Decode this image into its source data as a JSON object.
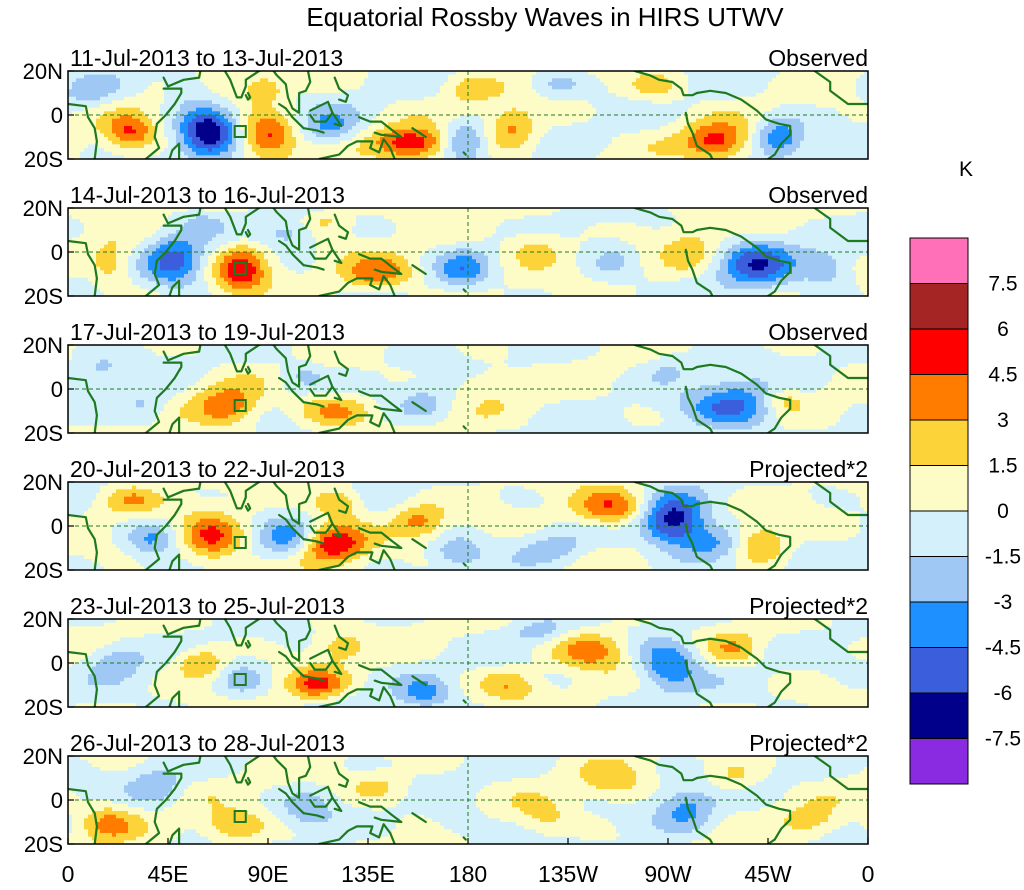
{
  "chart_data": {
    "type": "heatmap",
    "title": "Equatorial Rossby Waves in HIRS UTWV",
    "x_tick_labels": [
      "0",
      "45E",
      "90E",
      "135E",
      "180",
      "135W",
      "90W",
      "45W",
      "0"
    ],
    "x_ticks_deg": [
      0,
      45,
      90,
      135,
      180,
      225,
      270,
      315,
      360
    ],
    "xlim_deg": [
      0,
      360
    ],
    "y_tick_labels": [
      "20N",
      "0",
      "20S"
    ],
    "y_ticks_deg": [
      20,
      0,
      -20
    ],
    "ylim_deg": [
      -20,
      20
    ],
    "colorbar": {
      "unit": "K",
      "levels": [
        -7.5,
        -6,
        -4.5,
        -3,
        -1.5,
        0,
        1.5,
        3,
        4.5,
        6,
        7.5
      ],
      "level_labels": [
        "-7.5",
        "-6",
        "-4.5",
        "-3",
        "-1.5",
        "0",
        "1.5",
        "3",
        "4.5",
        "6",
        "7.5"
      ],
      "colors": [
        "#8a2be2",
        "#00008b",
        "#3b5fdc",
        "#1e90ff",
        "#9fc8f5",
        "#d4f0fb",
        "#fdfbc6",
        "#fcd43a",
        "#ff7c00",
        "#ff0000",
        "#a52525",
        "#ff70b8"
      ]
    },
    "reference_box": {
      "lon": [
        75,
        80
      ],
      "lat": [
        -10,
        -5
      ]
    },
    "panels": [
      {
        "date_range": "11-Jul-2013 to 13-Jul-2013",
        "label": "Observed",
        "blobs": [
          {
            "lon": 28,
            "lat": -8,
            "v": 4.2,
            "rl": 8,
            "rt": 6
          },
          {
            "lon": 63,
            "lat": -8,
            "v": -7.2,
            "rl": 9,
            "rt": 8
          },
          {
            "lon": 53,
            "lat": 12,
            "v": -2.0,
            "rl": 7,
            "rt": 5
          },
          {
            "lon": 90,
            "lat": -10,
            "v": 5.5,
            "rl": 9,
            "rt": 7
          },
          {
            "lon": 88,
            "lat": 12,
            "v": 2.5,
            "rl": 8,
            "rt": 5
          },
          {
            "lon": 118,
            "lat": -6,
            "v": -3.0,
            "rl": 9,
            "rt": 6
          },
          {
            "lon": 155,
            "lat": -13,
            "v": 5.8,
            "rl": 12,
            "rt": 5
          },
          {
            "lon": 178,
            "lat": -12,
            "v": -4.0,
            "rl": 7,
            "rt": 6
          },
          {
            "lon": 200,
            "lat": -6,
            "v": 3.5,
            "rl": 8,
            "rt": 7
          },
          {
            "lon": 180,
            "lat": 12,
            "v": 2.0,
            "rl": 8,
            "rt": 5
          },
          {
            "lon": 220,
            "lat": 14,
            "v": -1.8,
            "rl": 8,
            "rt": 4
          },
          {
            "lon": 292,
            "lat": -12,
            "v": 5.0,
            "rl": 11,
            "rt": 6
          },
          {
            "lon": 320,
            "lat": -10,
            "v": -4.5,
            "rl": 8,
            "rt": 6
          },
          {
            "lon": 265,
            "lat": 12,
            "v": 2.0,
            "rl": 9,
            "rt": 5
          },
          {
            "lon": 10,
            "lat": 10,
            "v": -1.8,
            "rl": 8,
            "rt": 5
          }
        ]
      },
      {
        "date_range": "14-Jul-2013 to 16-Jul-2013",
        "label": "Observed",
        "blobs": [
          {
            "lon": 20,
            "lat": -6,
            "v": 2.5,
            "rl": 7,
            "rt": 8
          },
          {
            "lon": 48,
            "lat": -4,
            "v": -4.5,
            "rl": 9,
            "rt": 9
          },
          {
            "lon": 78,
            "lat": -8,
            "v": 5.2,
            "rl": 8,
            "rt": 8
          },
          {
            "lon": 100,
            "lat": 8,
            "v": -2.2,
            "rl": 9,
            "rt": 5
          },
          {
            "lon": 140,
            "lat": -10,
            "v": 4.0,
            "rl": 12,
            "rt": 6
          },
          {
            "lon": 178,
            "lat": -8,
            "v": -3.2,
            "rl": 8,
            "rt": 6
          },
          {
            "lon": 210,
            "lat": 2,
            "v": 2.6,
            "rl": 10,
            "rt": 6
          },
          {
            "lon": 245,
            "lat": -4,
            "v": -1.8,
            "rl": 8,
            "rt": 7
          },
          {
            "lon": 280,
            "lat": 2,
            "v": 2.2,
            "rl": 9,
            "rt": 7
          },
          {
            "lon": 310,
            "lat": -5,
            "v": -5.0,
            "rl": 12,
            "rt": 8
          },
          {
            "lon": 342,
            "lat": -8,
            "v": -2.5,
            "rl": 8,
            "rt": 6
          },
          {
            "lon": 115,
            "lat": 14,
            "v": 2.0,
            "rl": 8,
            "rt": 4
          },
          {
            "lon": 60,
            "lat": 14,
            "v": -1.6,
            "rl": 7,
            "rt": 4
          }
        ]
      },
      {
        "date_range": "17-Jul-2013 to 19-Jul-2013",
        "label": "Observed",
        "blobs": [
          {
            "lon": 35,
            "lat": -8,
            "v": -2.0,
            "rl": 8,
            "rt": 6
          },
          {
            "lon": 72,
            "lat": -8,
            "v": 4.0,
            "rl": 10,
            "rt": 7
          },
          {
            "lon": 120,
            "lat": -10,
            "v": 3.5,
            "rl": 12,
            "rt": 5
          },
          {
            "lon": 105,
            "lat": 6,
            "v": -2.0,
            "rl": 8,
            "rt": 5
          },
          {
            "lon": 160,
            "lat": -6,
            "v": -1.8,
            "rl": 8,
            "rt": 6
          },
          {
            "lon": 190,
            "lat": 2,
            "v": 1.6,
            "rl": 10,
            "rt": 6
          },
          {
            "lon": 300,
            "lat": -8,
            "v": -4.6,
            "rl": 14,
            "rt": 8
          },
          {
            "lon": 270,
            "lat": 10,
            "v": -1.6,
            "rl": 9,
            "rt": 5
          },
          {
            "lon": 322,
            "lat": -5,
            "v": 2.2,
            "rl": 6,
            "rt": 4
          },
          {
            "lon": 15,
            "lat": 8,
            "v": -1.6,
            "rl": 7,
            "rt": 5
          }
        ]
      },
      {
        "date_range": "20-Jul-2013 to 22-Jul-2013",
        "label": "Projected*2",
        "blobs": [
          {
            "lon": 38,
            "lat": -6,
            "v": -3.0,
            "rl": 8,
            "rt": 6
          },
          {
            "lon": 65,
            "lat": -6,
            "v": 4.8,
            "rl": 10,
            "rt": 8
          },
          {
            "lon": 98,
            "lat": -6,
            "v": -3.2,
            "rl": 8,
            "rt": 6
          },
          {
            "lon": 120,
            "lat": -8,
            "v": 5.6,
            "rl": 10,
            "rt": 6
          },
          {
            "lon": 122,
            "lat": 10,
            "v": 3.5,
            "rl": 8,
            "rt": 5
          },
          {
            "lon": 158,
            "lat": 2,
            "v": 3.2,
            "rl": 8,
            "rt": 5
          },
          {
            "lon": 175,
            "lat": -12,
            "v": -2.8,
            "rl": 8,
            "rt": 5
          },
          {
            "lon": 245,
            "lat": 8,
            "v": 4.6,
            "rl": 12,
            "rt": 6
          },
          {
            "lon": 272,
            "lat": 2,
            "v": -7.0,
            "rl": 10,
            "rt": 8
          },
          {
            "lon": 290,
            "lat": -8,
            "v": -3.5,
            "rl": 10,
            "rt": 6
          },
          {
            "lon": 312,
            "lat": -8,
            "v": 3.3,
            "rl": 8,
            "rt": 6
          },
          {
            "lon": 218,
            "lat": -10,
            "v": -1.8,
            "rl": 10,
            "rt": 5
          },
          {
            "lon": 28,
            "lat": 12,
            "v": 2.5,
            "rl": 9,
            "rt": 5
          }
        ]
      },
      {
        "date_range": "23-Jul-2013 to 25-Jul-2013",
        "label": "Projected*2",
        "blobs": [
          {
            "lon": 22,
            "lat": 2,
            "v": -2.4,
            "rl": 9,
            "rt": 6
          },
          {
            "lon": 60,
            "lat": 0,
            "v": 3.5,
            "rl": 8,
            "rt": 5
          },
          {
            "lon": 78,
            "lat": -8,
            "v": -2.2,
            "rl": 8,
            "rt": 6
          },
          {
            "lon": 112,
            "lat": -10,
            "v": 4.2,
            "rl": 9,
            "rt": 5
          },
          {
            "lon": 122,
            "lat": 8,
            "v": 2.4,
            "rl": 8,
            "rt": 5
          },
          {
            "lon": 160,
            "lat": -14,
            "v": -3.2,
            "rl": 8,
            "rt": 5
          },
          {
            "lon": 198,
            "lat": -10,
            "v": 2.5,
            "rl": 9,
            "rt": 5
          },
          {
            "lon": 235,
            "lat": 6,
            "v": 4.0,
            "rl": 12,
            "rt": 6
          },
          {
            "lon": 270,
            "lat": 0,
            "v": -5.0,
            "rl": 10,
            "rt": 8
          },
          {
            "lon": 300,
            "lat": 6,
            "v": 2.5,
            "rl": 8,
            "rt": 5
          },
          {
            "lon": 212,
            "lat": 14,
            "v": -2.0,
            "rl": 9,
            "rt": 4
          }
        ]
      },
      {
        "date_range": "26-Jul-2013 to 28-Jul-2013",
        "label": "Projected*2",
        "blobs": [
          {
            "lon": 18,
            "lat": -10,
            "v": 3.0,
            "rl": 9,
            "rt": 6
          },
          {
            "lon": 40,
            "lat": 6,
            "v": -2.4,
            "rl": 8,
            "rt": 6
          },
          {
            "lon": 75,
            "lat": -12,
            "v": 3.4,
            "rl": 10,
            "rt": 5
          },
          {
            "lon": 108,
            "lat": -4,
            "v": -2.2,
            "rl": 8,
            "rt": 6
          },
          {
            "lon": 140,
            "lat": 6,
            "v": 2.0,
            "rl": 10,
            "rt": 5
          },
          {
            "lon": 175,
            "lat": -10,
            "v": -2.0,
            "rl": 9,
            "rt": 5
          },
          {
            "lon": 215,
            "lat": -8,
            "v": 1.8,
            "rl": 9,
            "rt": 6
          },
          {
            "lon": 245,
            "lat": 8,
            "v": 2.2,
            "rl": 10,
            "rt": 6
          },
          {
            "lon": 278,
            "lat": -4,
            "v": -3.2,
            "rl": 9,
            "rt": 7
          },
          {
            "lon": 300,
            "lat": 10,
            "v": 2.0,
            "rl": 8,
            "rt": 5
          },
          {
            "lon": 335,
            "lat": -10,
            "v": 2.2,
            "rl": 9,
            "rt": 5
          }
        ]
      }
    ]
  }
}
